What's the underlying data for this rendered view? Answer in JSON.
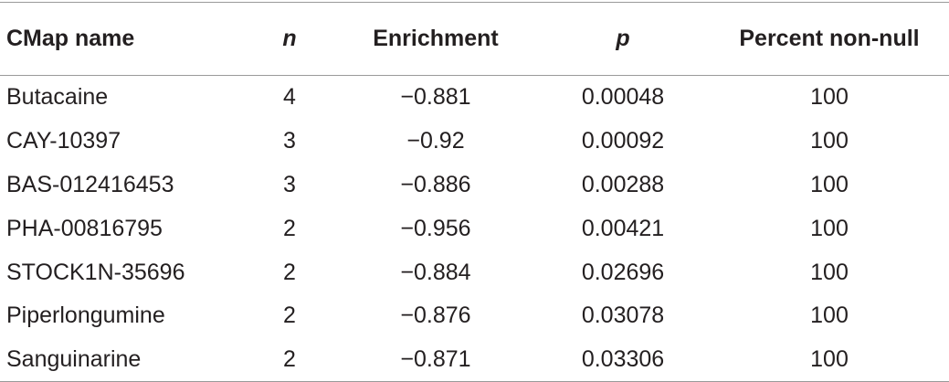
{
  "table": {
    "header": [
      "CMap name",
      "n",
      "Enrichment",
      "p",
      "Percent non-null"
    ],
    "rows": [
      [
        "Butacaine",
        "4",
        "−0.881",
        "0.00048",
        "100"
      ],
      [
        "CAY-10397",
        "3",
        "−0.92",
        "0.00092",
        "100"
      ],
      [
        "BAS-012416453",
        "3",
        "−0.886",
        "0.00288",
        "100"
      ],
      [
        "PHA-00816795",
        "2",
        "−0.956",
        "0.00421",
        "100"
      ],
      [
        "STOCK1N-35696",
        "2",
        "−0.884",
        "0.02696",
        "100"
      ],
      [
        "Piperlongumine",
        "2",
        "−0.876",
        "0.03078",
        "100"
      ],
      [
        "Sanguinarine",
        "2",
        "−0.871",
        "0.03306",
        "100"
      ]
    ]
  }
}
